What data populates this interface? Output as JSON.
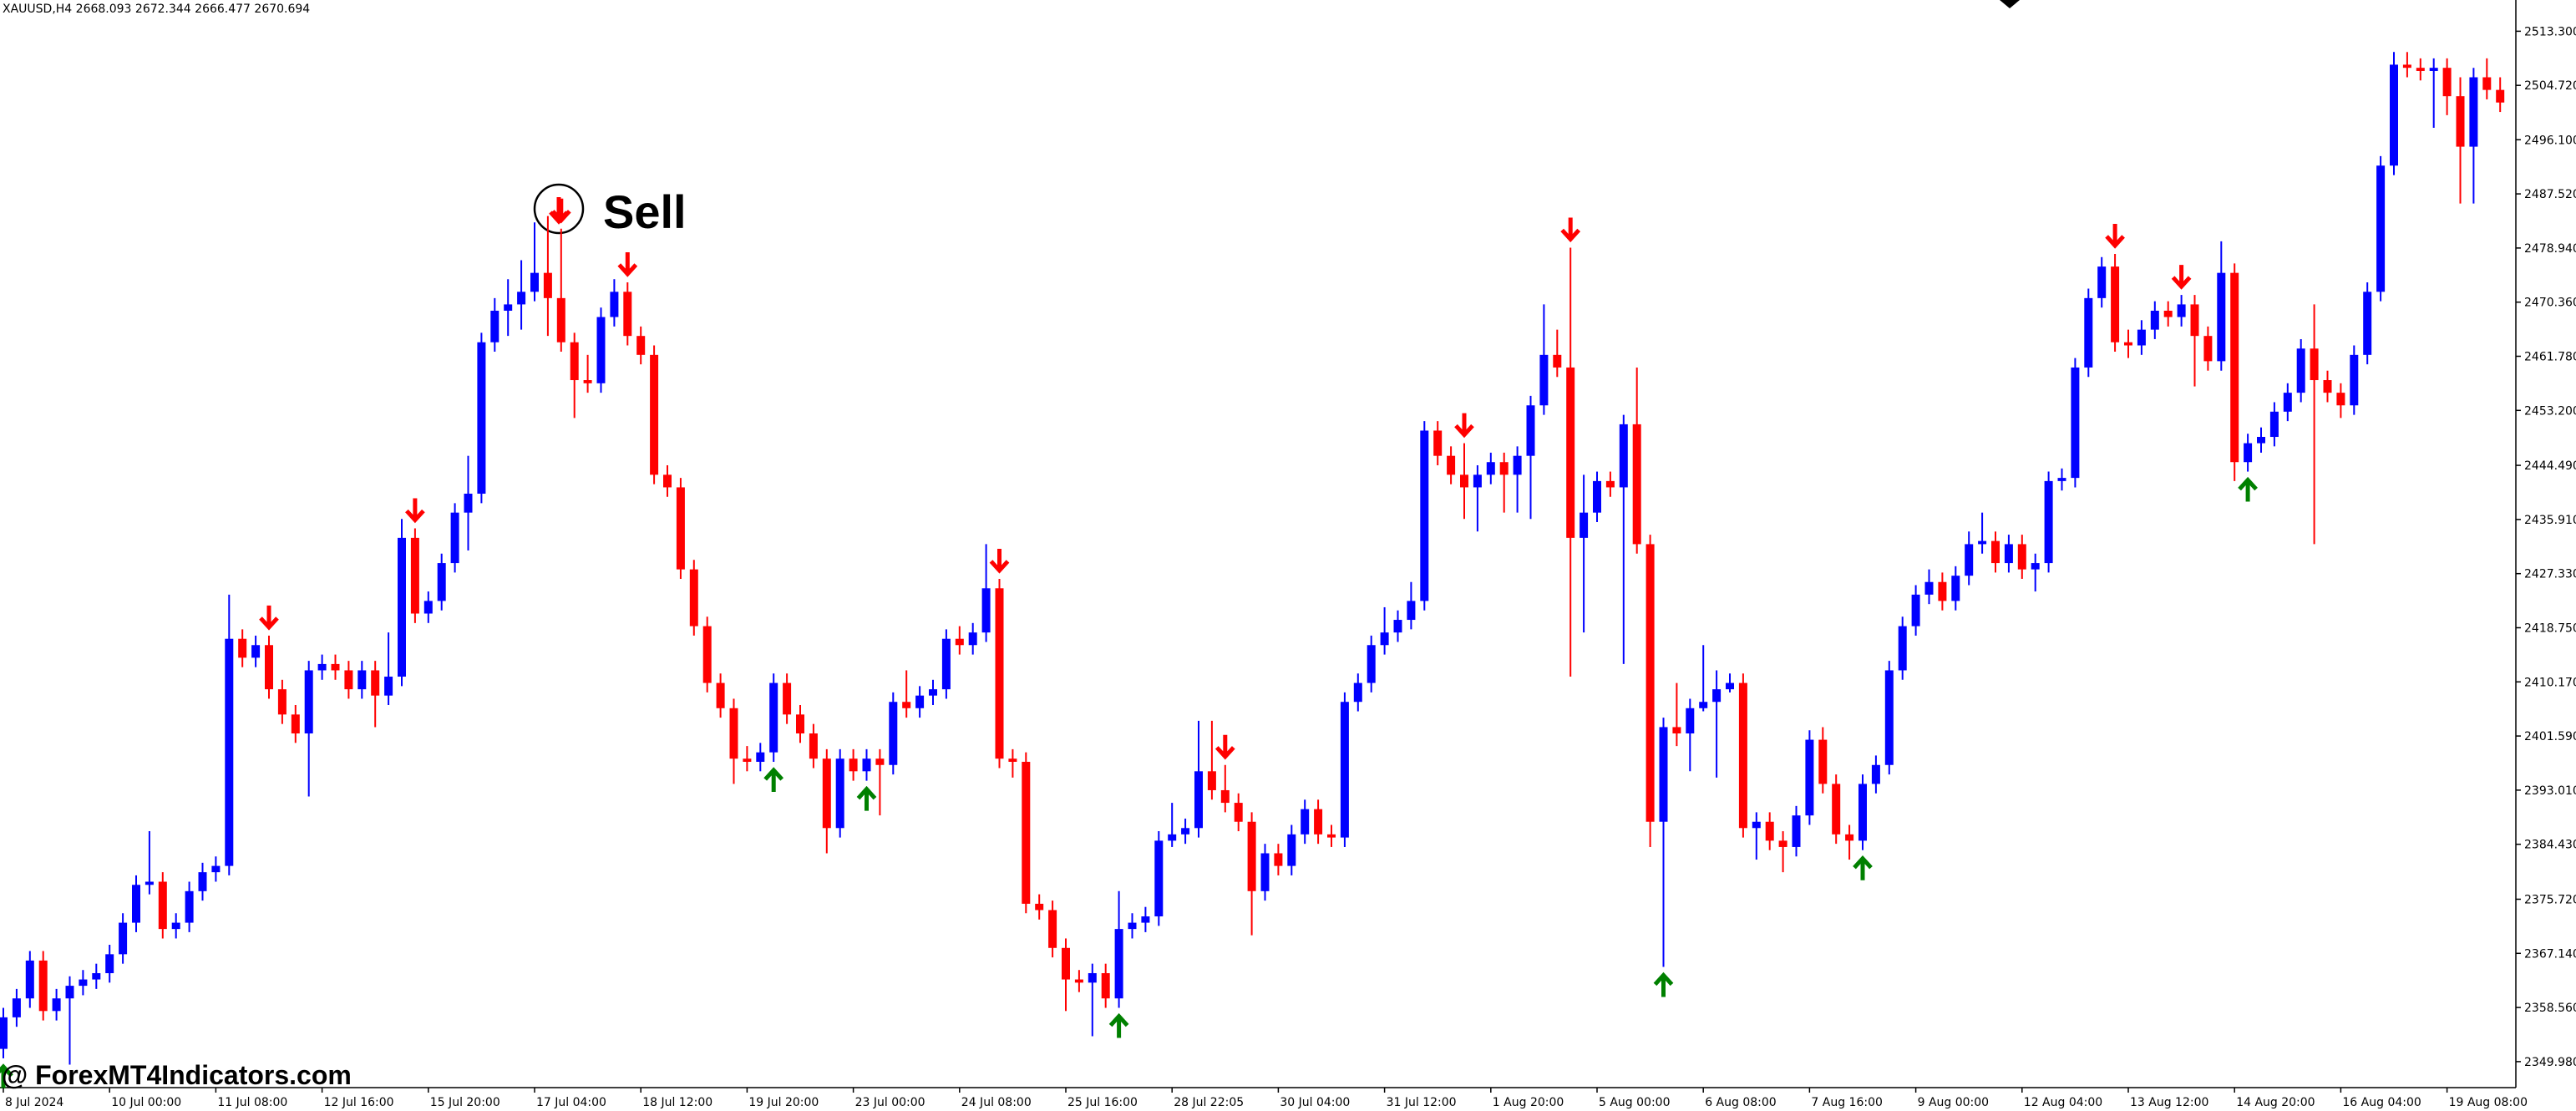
{
  "chart_data": {
    "type": "candlestick",
    "title": "XAUUSD,H4  2668.093 2672.344 2666.477 2670.694",
    "annotation": "Sell",
    "watermark": "@ ForexMT4Indicators.com",
    "up_color": "#0000ff",
    "down_color": "#ff0000",
    "buy_color": "#008000",
    "sell_color": "#ff0000",
    "ylim": [
      2345.86,
      2518.25
    ],
    "yticks": [
      {
        "value": 2513.3,
        "label": "2513.300"
      },
      {
        "value": 2504.72,
        "label": "2504.720"
      },
      {
        "value": 2496.1,
        "label": "2496.100"
      },
      {
        "value": 2487.52,
        "label": "2487.520"
      },
      {
        "value": 2478.94,
        "label": "2478.940"
      },
      {
        "value": 2470.36,
        "label": "2470.360"
      },
      {
        "value": 2461.78,
        "label": "2461.780"
      },
      {
        "value": 2453.2,
        "label": "2453.200"
      },
      {
        "value": 2444.49,
        "label": "2444.490"
      },
      {
        "value": 2435.91,
        "label": "2435.910"
      },
      {
        "value": 2427.33,
        "label": "2427.330"
      },
      {
        "value": 2418.75,
        "label": "2418.750"
      },
      {
        "value": 2410.17,
        "label": "2410.170"
      },
      {
        "value": 2401.59,
        "label": "2401.590"
      },
      {
        "value": 2393.01,
        "label": "2393.010"
      },
      {
        "value": 2384.43,
        "label": "2384.430"
      },
      {
        "value": 2375.72,
        "label": "2375.720"
      },
      {
        "value": 2367.14,
        "label": "2367.140"
      },
      {
        "value": 2358.56,
        "label": "2358.560"
      },
      {
        "value": 2349.98,
        "label": "2349.980"
      }
    ],
    "xticks": [
      {
        "value": 0,
        "label": "8 Jul 2024"
      },
      {
        "value": 8,
        "label": "10 Jul 00:00"
      },
      {
        "value": 16,
        "label": "11 Jul 08:00"
      },
      {
        "value": 24,
        "label": "12 Jul 16:00"
      },
      {
        "value": 32,
        "label": "15 Jul 20:00"
      },
      {
        "value": 40,
        "label": "17 Jul 04:00"
      },
      {
        "value": 48,
        "label": "18 Jul 12:00"
      },
      {
        "value": 56,
        "label": "19 Jul 20:00"
      },
      {
        "value": 64,
        "label": "23 Jul 00:00"
      },
      {
        "value": 72,
        "label": "24 Jul 08:00"
      },
      {
        "value": 80,
        "label": "25 Jul 16:00"
      },
      {
        "value": 88,
        "label": "28 Jul 22:05"
      },
      {
        "value": 96,
        "label": "30 Jul 04:00"
      },
      {
        "value": 104,
        "label": "31 Jul 12:00"
      },
      {
        "value": 112,
        "label": "1 Aug 20:00"
      },
      {
        "value": 120,
        "label": "5 Aug 00:00"
      },
      {
        "value": 128,
        "label": "6 Aug 08:00"
      },
      {
        "value": 136,
        "label": "7 Aug 16:00"
      },
      {
        "value": 144,
        "label": "9 Aug 00:00"
      },
      {
        "value": 152,
        "label": "12 Aug 04:00"
      },
      {
        "value": 160,
        "label": "13 Aug 12:00"
      },
      {
        "value": 168,
        "label": "14 Aug 20:00"
      },
      {
        "value": 176,
        "label": "16 Aug 04:00"
      },
      {
        "value": 184,
        "label": "19 Aug 08:00"
      }
    ],
    "sell_signals": [
      20,
      31,
      42,
      47,
      75,
      92,
      110,
      118,
      159,
      164
    ],
    "buy_signals": [
      0,
      58,
      65,
      84,
      125,
      140,
      169
    ],
    "ohlc": [
      [
        2352,
        2358.5,
        2350.5,
        2357
      ],
      [
        2357,
        2361.5,
        2355.5,
        2360
      ],
      [
        2360,
        2367.5,
        2358.5,
        2366
      ],
      [
        2366,
        2367.5,
        2356.5,
        2358
      ],
      [
        2358,
        2361.5,
        2356.5,
        2360
      ],
      [
        2360,
        2363.5,
        2349.5,
        2362
      ],
      [
        2362,
        2364.5,
        2360.5,
        2363
      ],
      [
        2363,
        2365.5,
        2361.5,
        2364
      ],
      [
        2364,
        2368.5,
        2362.5,
        2367
      ],
      [
        2367,
        2373.5,
        2365.5,
        2372
      ],
      [
        2372,
        2379.5,
        2370.5,
        2378
      ],
      [
        2378,
        2386.5,
        2376.5,
        2378.5
      ],
      [
        2378.5,
        2380,
        2369.5,
        2371
      ],
      [
        2371,
        2373.5,
        2369.5,
        2372
      ],
      [
        2372,
        2378.5,
        2370.5,
        2377
      ],
      [
        2377,
        2381.5,
        2375.5,
        2380
      ],
      [
        2380,
        2382.5,
        2378.5,
        2381
      ],
      [
        2381,
        2424,
        2379.5,
        2417
      ],
      [
        2417,
        2418.5,
        2412.5,
        2414
      ],
      [
        2414,
        2417.5,
        2412.5,
        2416
      ],
      [
        2416,
        2417.5,
        2407.5,
        2409
      ],
      [
        2409,
        2410.5,
        2403.5,
        2405
      ],
      [
        2405,
        2406.5,
        2400.5,
        2402
      ],
      [
        2402,
        2413.5,
        2392,
        2412
      ],
      [
        2412,
        2414.5,
        2410.5,
        2413
      ],
      [
        2413,
        2414.5,
        2410.5,
        2412
      ],
      [
        2412,
        2413.5,
        2407.5,
        2409
      ],
      [
        2409,
        2413.5,
        2407.5,
        2412
      ],
      [
        2412,
        2413.5,
        2403,
        2408
      ],
      [
        2408,
        2418,
        2406.5,
        2411
      ],
      [
        2411,
        2436,
        2409.5,
        2433
      ],
      [
        2433,
        2434.5,
        2419.5,
        2421
      ],
      [
        2421,
        2424.5,
        2419.5,
        2423
      ],
      [
        2423,
        2430.5,
        2421.5,
        2429
      ],
      [
        2429,
        2438.5,
        2427.5,
        2437
      ],
      [
        2437,
        2446,
        2431,
        2440
      ],
      [
        2440,
        2465.5,
        2438.5,
        2464
      ],
      [
        2464,
        2471,
        2462.5,
        2469
      ],
      [
        2469,
        2474,
        2465,
        2470
      ],
      [
        2470,
        2477,
        2466,
        2472
      ],
      [
        2472,
        2483,
        2470.5,
        2475
      ],
      [
        2475,
        2484,
        2465,
        2471
      ],
      [
        2471,
        2482,
        2462.5,
        2464
      ],
      [
        2464,
        2465.5,
        2452,
        2458
      ],
      [
        2458,
        2462,
        2456,
        2457.5
      ],
      [
        2457.5,
        2469.5,
        2456,
        2468
      ],
      [
        2468,
        2474,
        2466.5,
        2472
      ],
      [
        2472,
        2473.5,
        2463.5,
        2465
      ],
      [
        2465,
        2466.5,
        2460.5,
        2462
      ],
      [
        2462,
        2463.5,
        2441.5,
        2443
      ],
      [
        2443,
        2444.5,
        2439.5,
        2441
      ],
      [
        2441,
        2442.5,
        2426.5,
        2428
      ],
      [
        2428,
        2429.5,
        2417.5,
        2419
      ],
      [
        2419,
        2420.5,
        2408.5,
        2410
      ],
      [
        2410,
        2411.5,
        2404.5,
        2406
      ],
      [
        2406,
        2407.5,
        2394,
        2398
      ],
      [
        2398,
        2400,
        2396,
        2397.5
      ],
      [
        2397.5,
        2400.5,
        2396,
        2399
      ],
      [
        2399,
        2411.5,
        2397.5,
        2410
      ],
      [
        2410,
        2411.5,
        2403.5,
        2405
      ],
      [
        2405,
        2406.5,
        2400.5,
        2402
      ],
      [
        2402,
        2403.5,
        2396.5,
        2398
      ],
      [
        2398,
        2399.5,
        2383,
        2387
      ],
      [
        2387,
        2399.5,
        2385.5,
        2398
      ],
      [
        2398,
        2399.5,
        2394.5,
        2396
      ],
      [
        2396,
        2399.5,
        2394.5,
        2398
      ],
      [
        2398,
        2399.5,
        2389,
        2397
      ],
      [
        2397,
        2408.5,
        2395.5,
        2407
      ],
      [
        2407,
        2412,
        2404.5,
        2406
      ],
      [
        2406,
        2409.5,
        2404.5,
        2408
      ],
      [
        2408,
        2410.5,
        2406.5,
        2409
      ],
      [
        2409,
        2418.5,
        2407.5,
        2417
      ],
      [
        2417,
        2419,
        2414.5,
        2416
      ],
      [
        2416,
        2419.5,
        2414.5,
        2418
      ],
      [
        2418,
        2432,
        2416.5,
        2425
      ],
      [
        2425,
        2426.5,
        2396.5,
        2398
      ],
      [
        2398,
        2399.5,
        2395,
        2397.5
      ],
      [
        2397.5,
        2399,
        2373.5,
        2375
      ],
      [
        2375,
        2376.5,
        2372.5,
        2374
      ],
      [
        2374,
        2375.5,
        2366.5,
        2368
      ],
      [
        2368,
        2369.5,
        2358,
        2363
      ],
      [
        2363,
        2364.5,
        2361,
        2362.5
      ],
      [
        2362.5,
        2365.5,
        2354,
        2364
      ],
      [
        2364,
        2365.5,
        2358.5,
        2360
      ],
      [
        2360,
        2377,
        2358.5,
        2371
      ],
      [
        2371,
        2373.5,
        2369.5,
        2372
      ],
      [
        2372,
        2374.5,
        2370.5,
        2373
      ],
      [
        2373,
        2386.5,
        2371.5,
        2385
      ],
      [
        2385,
        2391,
        2384,
        2386
      ],
      [
        2386,
        2388.5,
        2384.5,
        2387
      ],
      [
        2387,
        2404,
        2385.5,
        2396
      ],
      [
        2396,
        2404,
        2391.5,
        2393
      ],
      [
        2393,
        2397,
        2389.5,
        2391
      ],
      [
        2391,
        2392.5,
        2386.5,
        2388
      ],
      [
        2388,
        2389.5,
        2370,
        2377
      ],
      [
        2377,
        2384.5,
        2375.5,
        2383
      ],
      [
        2383,
        2384.5,
        2379.5,
        2381
      ],
      [
        2381,
        2387.5,
        2379.5,
        2386
      ],
      [
        2386,
        2391.5,
        2384.5,
        2390
      ],
      [
        2390,
        2391.5,
        2384.5,
        2386
      ],
      [
        2386,
        2387.5,
        2384,
        2385.5
      ],
      [
        2385.5,
        2408.5,
        2384,
        2407
      ],
      [
        2407,
        2411.5,
        2405.5,
        2410
      ],
      [
        2410,
        2417.5,
        2408.5,
        2416
      ],
      [
        2416,
        2422,
        2414.5,
        2418
      ],
      [
        2418,
        2421.5,
        2416.5,
        2420
      ],
      [
        2420,
        2426,
        2418.5,
        2423
      ],
      [
        2423,
        2451.5,
        2421.5,
        2450
      ],
      [
        2450,
        2451.5,
        2444.5,
        2446
      ],
      [
        2446,
        2447.5,
        2441.5,
        2443
      ],
      [
        2443,
        2448,
        2436,
        2441
      ],
      [
        2441,
        2444.5,
        2434,
        2443
      ],
      [
        2443,
        2446.5,
        2441.5,
        2445
      ],
      [
        2445,
        2446.5,
        2437,
        2443
      ],
      [
        2443,
        2447.5,
        2437,
        2446
      ],
      [
        2446,
        2455.5,
        2436,
        2454
      ],
      [
        2454,
        2470,
        2452.5,
        2462
      ],
      [
        2462,
        2466,
        2458.5,
        2460
      ],
      [
        2460,
        2479,
        2411,
        2433
      ],
      [
        2433,
        2443,
        2418,
        2437
      ],
      [
        2437,
        2443.5,
        2435.5,
        2442
      ],
      [
        2442,
        2443.5,
        2439.5,
        2441
      ],
      [
        2441,
        2452.5,
        2413,
        2451
      ],
      [
        2451,
        2460,
        2430.5,
        2432
      ],
      [
        2432,
        2433.5,
        2384,
        2388
      ],
      [
        2388,
        2404.5,
        2365,
        2403
      ],
      [
        2403,
        2410,
        2400,
        2402
      ],
      [
        2402,
        2407.5,
        2396,
        2406
      ],
      [
        2406,
        2416,
        2405.5,
        2407
      ],
      [
        2407,
        2412,
        2395,
        2409
      ],
      [
        2409,
        2411.5,
        2408.5,
        2410
      ],
      [
        2410,
        2411.5,
        2385.5,
        2387
      ],
      [
        2387,
        2389.5,
        2382,
        2388
      ],
      [
        2388,
        2389.5,
        2383.5,
        2385
      ],
      [
        2385,
        2386.5,
        2380,
        2384
      ],
      [
        2384,
        2390.5,
        2382.5,
        2389
      ],
      [
        2389,
        2402.5,
        2387.5,
        2401
      ],
      [
        2401,
        2403,
        2392.5,
        2394
      ],
      [
        2394,
        2395.5,
        2384.5,
        2386
      ],
      [
        2386,
        2387.5,
        2382,
        2385
      ],
      [
        2385,
        2395.5,
        2383.5,
        2394
      ],
      [
        2394,
        2398.5,
        2392.5,
        2397
      ],
      [
        2397,
        2413.5,
        2395.5,
        2412
      ],
      [
        2412,
        2420.5,
        2410.5,
        2419
      ],
      [
        2419,
        2425.5,
        2417.5,
        2424
      ],
      [
        2424,
        2428,
        2422.5,
        2426
      ],
      [
        2426,
        2427.5,
        2421.5,
        2423
      ],
      [
        2423,
        2428.5,
        2421.5,
        2427
      ],
      [
        2427,
        2434,
        2425.5,
        2432
      ],
      [
        2432,
        2437,
        2430.5,
        2432.5
      ],
      [
        2432.5,
        2434,
        2427.5,
        2429
      ],
      [
        2429,
        2433.5,
        2427.5,
        2432
      ],
      [
        2432,
        2433.5,
        2426.5,
        2428
      ],
      [
        2428,
        2430.5,
        2424.5,
        2429
      ],
      [
        2429,
        2443.5,
        2427.5,
        2442
      ],
      [
        2442,
        2444,
        2440.5,
        2442.5
      ],
      [
        2442.5,
        2461.5,
        2441,
        2460
      ],
      [
        2460,
        2472.5,
        2458.5,
        2471
      ],
      [
        2471,
        2477.5,
        2469.5,
        2476
      ],
      [
        2476,
        2478,
        2462.5,
        2464
      ],
      [
        2464,
        2466,
        2461.5,
        2463.5
      ],
      [
        2463.5,
        2467.5,
        2462,
        2466
      ],
      [
        2466,
        2470.5,
        2464.5,
        2469
      ],
      [
        2469,
        2470.5,
        2466.5,
        2468
      ],
      [
        2468,
        2471.5,
        2466.5,
        2470
      ],
      [
        2470,
        2471.5,
        2457,
        2465
      ],
      [
        2465,
        2466.5,
        2459.5,
        2461
      ],
      [
        2461,
        2480,
        2459.5,
        2475
      ],
      [
        2475,
        2476.5,
        2442,
        2445
      ],
      [
        2445,
        2449.5,
        2443.5,
        2448
      ],
      [
        2448,
        2450.5,
        2446.5,
        2449
      ],
      [
        2449,
        2454.5,
        2447.5,
        2453
      ],
      [
        2453,
        2457.5,
        2451.5,
        2456
      ],
      [
        2456,
        2464.5,
        2454.5,
        2463
      ],
      [
        2463,
        2470,
        2432,
        2458
      ],
      [
        2458,
        2459.5,
        2454.5,
        2456
      ],
      [
        2456,
        2457.5,
        2452,
        2454
      ],
      [
        2454,
        2463.5,
        2452.5,
        2462
      ],
      [
        2462,
        2473.5,
        2460.5,
        2472
      ],
      [
        2472,
        2493.5,
        2470.5,
        2492
      ],
      [
        2492,
        2510,
        2490.5,
        2508
      ],
      [
        2508,
        2510,
        2506,
        2507.5
      ],
      [
        2507.5,
        2509,
        2505.5,
        2507
      ],
      [
        2507,
        2509,
        2498,
        2507.5
      ],
      [
        2507.5,
        2509,
        2500,
        2503
      ],
      [
        2503,
        2506,
        2486,
        2495
      ],
      [
        2495,
        2507.5,
        2486,
        2506
      ],
      [
        2506,
        2509,
        2502.5,
        2504
      ],
      [
        2504,
        2506,
        2500.5,
        2502
      ]
    ]
  }
}
